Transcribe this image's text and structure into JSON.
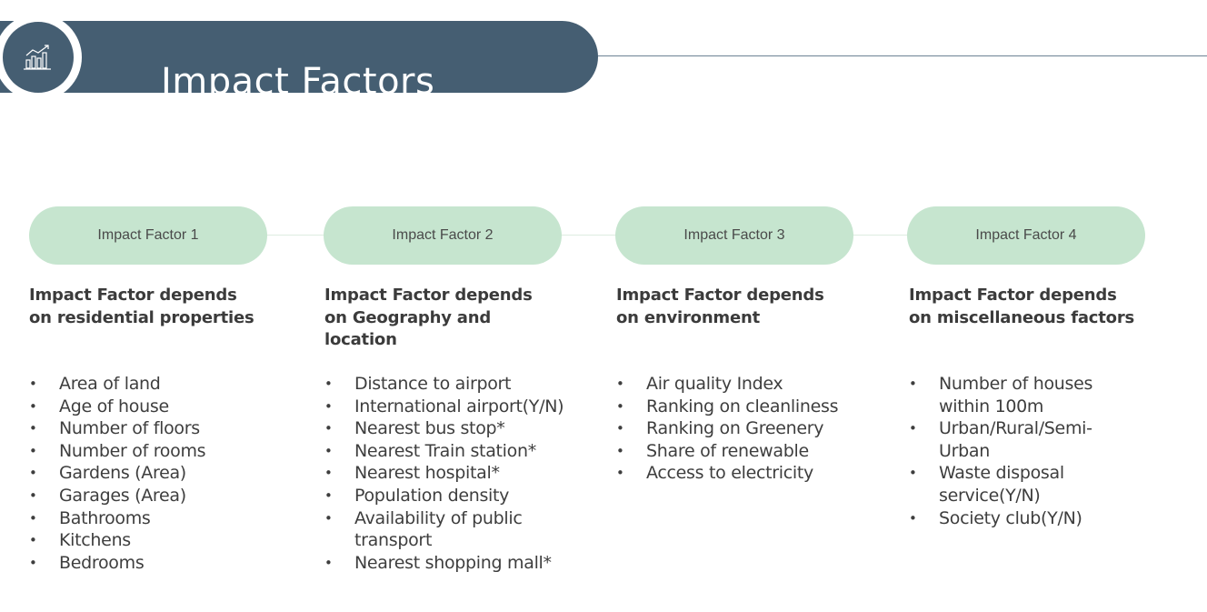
{
  "header": {
    "title": "Impact Factors",
    "icon": "chart-icon"
  },
  "colors": {
    "header": "#455e72",
    "pill": "#c6e5cf"
  },
  "factors": [
    {
      "label": "Impact Factor 1",
      "heading": "Impact Factor depends on residential properties",
      "items": [
        "Area of land",
        "Age of house",
        "Number of floors",
        "Number of rooms",
        "Gardens (Area)",
        "Garages (Area)",
        "Bathrooms",
        "Kitchens",
        "Bedrooms"
      ]
    },
    {
      "label": "Impact Factor 2",
      "heading": "Impact Factor depends on Geography and location",
      "items": [
        "Distance to airport",
        "International airport(Y/N)",
        "Nearest bus stop*",
        "Nearest Train station*",
        "Nearest hospital*",
        "Population density",
        "Availability of public transport",
        "Nearest shopping mall*"
      ]
    },
    {
      "label": "Impact Factor 3",
      "heading": "Impact Factor depends on environment",
      "items": [
        "Air quality Index",
        "Ranking on cleanliness",
        "Ranking on Greenery",
        "Share of renewable",
        "Access to electricity"
      ]
    },
    {
      "label": "Impact Factor 4",
      "heading": "Impact Factor depends on miscellaneous factors",
      "items": [
        "Number of houses within 100m",
        "Urban/Rural/Semi-Urban",
        "Waste disposal service(Y/N)",
        "Society club(Y/N)"
      ]
    }
  ]
}
